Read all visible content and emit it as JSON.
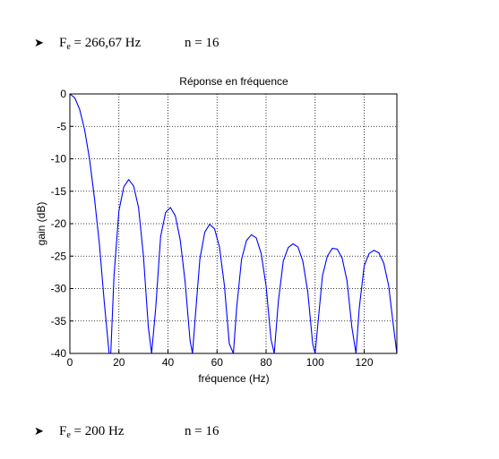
{
  "header_line": {
    "fe_label": "F",
    "fe_sub": "e",
    "fe_value": "= 266,67 Hz",
    "n_text": "n = 16"
  },
  "footer_line": {
    "fe_label": "F",
    "fe_sub": "e",
    "fe_value": "= 200 Hz",
    "n_text": "n = 16"
  },
  "icons": {
    "bullet": "right-arrowhead-icon"
  },
  "chart_data": {
    "type": "line",
    "title": "Réponse en fréquence",
    "xlabel": "fréquence (Hz)",
    "ylabel": "gain (dB)",
    "xlim": [
      0,
      133.33
    ],
    "ylim": [
      -40,
      0
    ],
    "xticks": [
      0,
      20,
      40,
      60,
      80,
      100,
      120
    ],
    "yticks": [
      0,
      -5,
      -10,
      -15,
      -20,
      -25,
      -30,
      -35,
      -40
    ],
    "grid": true,
    "line_color": "#0000ff",
    "series": [
      {
        "x": [
          0,
          2,
          4,
          6,
          8,
          10,
          12,
          14,
          16,
          16.67,
          18,
          20,
          22,
          24,
          26,
          28,
          30,
          32,
          33.33,
          35,
          37,
          39,
          41,
          43,
          45,
          47,
          49,
          50,
          51,
          53,
          55,
          57,
          59,
          61,
          63,
          65,
          66.67,
          68,
          70,
          72,
          74,
          76,
          78,
          80,
          82,
          83.33,
          85,
          87,
          89,
          91,
          93,
          95,
          97,
          99,
          100,
          101,
          103,
          105,
          107,
          109,
          111,
          113,
          115,
          116.67,
          118,
          120,
          122,
          124,
          126,
          128,
          130,
          132,
          133.33
        ],
        "y": [
          0,
          -0.6,
          -2.4,
          -5.5,
          -10,
          -16,
          -23,
          -32,
          -40,
          -40,
          -28,
          -18,
          -14.3,
          -13.2,
          -14.2,
          -17.5,
          -25,
          -36,
          -40,
          -33,
          -22,
          -18.3,
          -17.5,
          -18.8,
          -22.5,
          -29,
          -38,
          -40,
          -35,
          -25.5,
          -21.3,
          -20.1,
          -20.8,
          -23.6,
          -29.5,
          -38.5,
          -40,
          -33,
          -25.5,
          -22.6,
          -21.7,
          -22.2,
          -24.6,
          -29.6,
          -37.8,
          -40,
          -32,
          -25.8,
          -23.7,
          -23.1,
          -23.6,
          -25.8,
          -30.5,
          -38.5,
          -40,
          -36,
          -28,
          -25,
          -23.8,
          -23.9,
          -25.3,
          -28.8,
          -36,
          -40,
          -33,
          -26.5,
          -24.6,
          -24.1,
          -24.5,
          -26.1,
          -29.6,
          -36,
          -40
        ]
      }
    ]
  }
}
